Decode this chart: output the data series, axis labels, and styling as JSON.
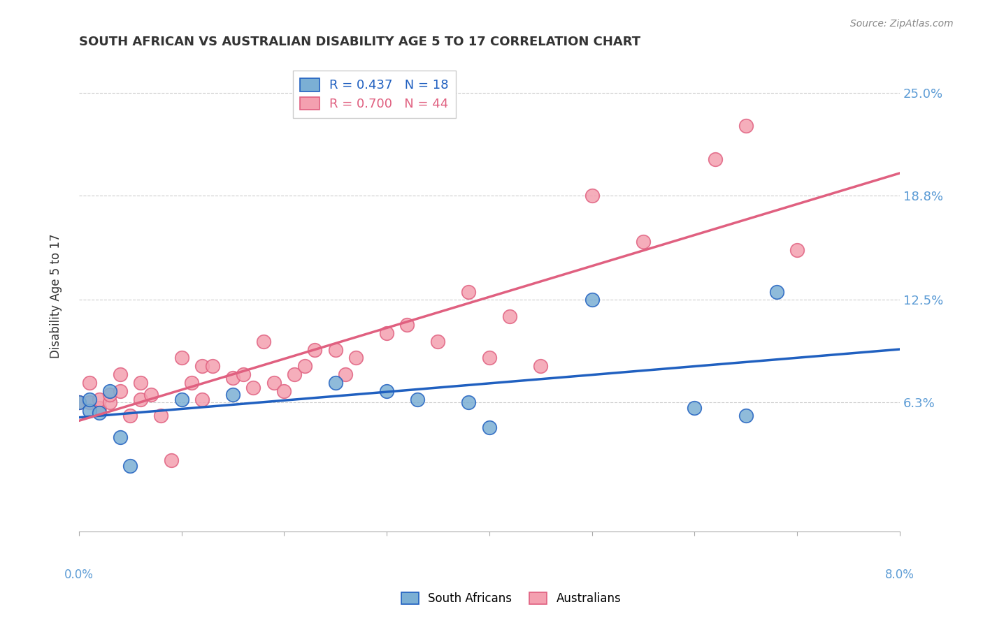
{
  "title": "SOUTH AFRICAN VS AUSTRALIAN DISABILITY AGE 5 TO 17 CORRELATION CHART",
  "source": "Source: ZipAtlas.com",
  "ylabel": "Disability Age 5 to 17",
  "xlim": [
    0.0,
    0.08
  ],
  "ylim": [
    -0.015,
    0.27
  ],
  "background_color": "#ffffff",
  "grid_color": "#cccccc",
  "sa_color": "#7bafd4",
  "au_color": "#f4a0b0",
  "sa_line_color": "#2060c0",
  "au_line_color": "#e06080",
  "sa_R": 0.437,
  "sa_N": 18,
  "au_R": 0.7,
  "au_N": 44,
  "legend_label_sa": "South Africans",
  "legend_label_au": "Australians",
  "ytick_vals": [
    0.063,
    0.125,
    0.188,
    0.25
  ],
  "ytick_labels": [
    "6.3%",
    "12.5%",
    "18.8%",
    "25.0%"
  ],
  "sa_points_x": [
    0.0,
    0.001,
    0.001,
    0.002,
    0.003,
    0.004,
    0.005,
    0.01,
    0.015,
    0.025,
    0.03,
    0.033,
    0.038,
    0.04,
    0.05,
    0.06,
    0.065,
    0.068
  ],
  "sa_points_y": [
    0.063,
    0.058,
    0.065,
    0.057,
    0.07,
    0.042,
    0.025,
    0.065,
    0.068,
    0.075,
    0.07,
    0.065,
    0.063,
    0.048,
    0.125,
    0.06,
    0.055,
    0.13
  ],
  "au_points_x": [
    0.0,
    0.001,
    0.001,
    0.002,
    0.002,
    0.003,
    0.003,
    0.004,
    0.004,
    0.005,
    0.006,
    0.006,
    0.007,
    0.008,
    0.009,
    0.01,
    0.011,
    0.012,
    0.012,
    0.013,
    0.015,
    0.016,
    0.017,
    0.018,
    0.019,
    0.02,
    0.021,
    0.022,
    0.023,
    0.025,
    0.026,
    0.027,
    0.03,
    0.032,
    0.035,
    0.038,
    0.04,
    0.042,
    0.045,
    0.05,
    0.055,
    0.062,
    0.065,
    0.07
  ],
  "au_points_y": [
    0.063,
    0.063,
    0.075,
    0.06,
    0.065,
    0.063,
    0.068,
    0.07,
    0.08,
    0.055,
    0.065,
    0.075,
    0.068,
    0.055,
    0.028,
    0.09,
    0.075,
    0.065,
    0.085,
    0.085,
    0.078,
    0.08,
    0.072,
    0.1,
    0.075,
    0.07,
    0.08,
    0.085,
    0.095,
    0.095,
    0.08,
    0.09,
    0.105,
    0.11,
    0.1,
    0.13,
    0.09,
    0.115,
    0.085,
    0.188,
    0.16,
    0.21,
    0.23,
    0.155
  ]
}
